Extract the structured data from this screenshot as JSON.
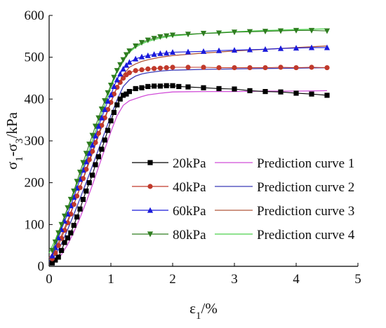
{
  "chart_data": {
    "type": "line",
    "xlabel": "ε1/%",
    "ylabel": "σ1-σ3/kPa",
    "xlim": [
      0,
      5
    ],
    "ylim": [
      0,
      600
    ],
    "x_ticks": [
      "0",
      "1",
      "2",
      "3",
      "4",
      "5"
    ],
    "y_ticks": [
      "0",
      "100",
      "200",
      "300",
      "400",
      "500",
      "600"
    ],
    "grid": false,
    "legend_position": "bottom-right",
    "series": [
      {
        "name": "20kPa",
        "kind": "measured",
        "marker": "square",
        "color": "#000000",
        "x": [
          0.05,
          0.1,
          0.15,
          0.2,
          0.25,
          0.3,
          0.35,
          0.4,
          0.45,
          0.5,
          0.55,
          0.6,
          0.65,
          0.7,
          0.75,
          0.8,
          0.85,
          0.9,
          0.95,
          1.0,
          1.05,
          1.1,
          1.15,
          1.2,
          1.25,
          1.3,
          1.4,
          1.5,
          1.6,
          1.7,
          1.8,
          1.9,
          2.0,
          2.1,
          2.25,
          2.5,
          2.75,
          3.0,
          3.25,
          3.5,
          3.75,
          4.0,
          4.25,
          4.5
        ],
        "y": [
          8,
          15,
          22,
          38,
          57,
          68,
          80,
          98,
          118,
          137,
          160,
          180,
          200,
          218,
          243,
          262,
          280,
          302,
          325,
          348,
          368,
          386,
          400,
          409,
          412,
          418,
          425,
          427,
          430,
          431,
          431,
          432,
          432,
          430,
          429,
          427,
          425,
          424,
          420,
          418,
          417,
          414,
          412,
          409
        ]
      },
      {
        "name": "40kPa",
        "kind": "measured",
        "marker": "circle",
        "color": "#c0392b",
        "x": [
          0.05,
          0.1,
          0.15,
          0.2,
          0.25,
          0.3,
          0.35,
          0.4,
          0.45,
          0.5,
          0.55,
          0.6,
          0.65,
          0.7,
          0.75,
          0.8,
          0.85,
          0.9,
          0.95,
          1.0,
          1.05,
          1.1,
          1.15,
          1.2,
          1.25,
          1.3,
          1.4,
          1.5,
          1.6,
          1.7,
          1.8,
          1.9,
          2.0,
          2.25,
          2.5,
          2.75,
          3.0,
          3.25,
          3.5,
          3.75,
          4.0,
          4.25,
          4.5
        ],
        "y": [
          18,
          32,
          50,
          67,
          86,
          104,
          125,
          148,
          168,
          188,
          210,
          232,
          255,
          275,
          296,
          318,
          337,
          355,
          375,
          392,
          412,
          428,
          440,
          450,
          458,
          463,
          468,
          470,
          472,
          473,
          474,
          475,
          476,
          476,
          476,
          475,
          475,
          475,
          475,
          476,
          475,
          476,
          475
        ]
      },
      {
        "name": "60kPa",
        "kind": "measured",
        "marker": "triangle-up",
        "color": "#1a1adb",
        "x": [
          0.05,
          0.1,
          0.15,
          0.2,
          0.25,
          0.3,
          0.35,
          0.4,
          0.45,
          0.5,
          0.55,
          0.6,
          0.65,
          0.7,
          0.75,
          0.8,
          0.85,
          0.9,
          0.95,
          1.0,
          1.05,
          1.1,
          1.15,
          1.2,
          1.25,
          1.3,
          1.4,
          1.5,
          1.6,
          1.7,
          1.8,
          1.9,
          2.0,
          2.25,
          2.5,
          2.75,
          3.0,
          3.25,
          3.5,
          3.75,
          4.0,
          4.25,
          4.5
        ],
        "y": [
          25,
          45,
          68,
          88,
          108,
          125,
          145,
          165,
          187,
          208,
          230,
          250,
          270,
          290,
          312,
          335,
          355,
          375,
          395,
          410,
          430,
          446,
          460,
          472,
          481,
          488,
          496,
          501,
          504,
          507,
          509,
          510,
          512,
          513,
          514,
          516,
          517,
          518,
          519,
          521,
          522,
          523,
          523
        ]
      },
      {
        "name": "80kPa",
        "kind": "measured",
        "marker": "triangle-down",
        "color": "#2e7d1f",
        "x": [
          0.05,
          0.1,
          0.15,
          0.2,
          0.25,
          0.3,
          0.35,
          0.4,
          0.45,
          0.5,
          0.55,
          0.6,
          0.65,
          0.7,
          0.75,
          0.8,
          0.85,
          0.9,
          0.95,
          1.0,
          1.05,
          1.1,
          1.15,
          1.2,
          1.25,
          1.3,
          1.4,
          1.5,
          1.6,
          1.7,
          1.8,
          1.9,
          2.0,
          2.25,
          2.5,
          2.75,
          3.0,
          3.25,
          3.5,
          3.75,
          4.0,
          4.25,
          4.5
        ],
        "y": [
          38,
          58,
          80,
          100,
          120,
          140,
          160,
          180,
          203,
          225,
          248,
          270,
          292,
          313,
          335,
          355,
          376,
          396,
          415,
          433,
          452,
          468,
          482,
          494,
          506,
          515,
          527,
          535,
          541,
          545,
          549,
          551,
          553,
          555,
          557,
          558,
          560,
          561,
          562,
          563,
          564,
          564,
          563
        ]
      },
      {
        "name": "Prediction curve 1",
        "kind": "prediction",
        "color": "#d14ed8",
        "x": [
          0,
          0.1,
          0.2,
          0.3,
          0.4,
          0.5,
          0.6,
          0.7,
          0.8,
          0.9,
          1.0,
          1.1,
          1.2,
          1.3,
          1.4,
          1.5,
          1.6,
          1.8,
          2.0,
          2.5,
          3.0,
          3.5,
          4.0,
          4.5
        ],
        "y": [
          5,
          12,
          28,
          52,
          82,
          116,
          154,
          194,
          237,
          280,
          322,
          360,
          385,
          396,
          401,
          406,
          410,
          414,
          417,
          418,
          418,
          419,
          419,
          420
        ]
      },
      {
        "name": "Prediction curve 2",
        "kind": "prediction",
        "color": "#3a3ab8",
        "x": [
          0,
          0.1,
          0.2,
          0.3,
          0.4,
          0.5,
          0.6,
          0.7,
          0.8,
          0.9,
          1.0,
          1.1,
          1.2,
          1.3,
          1.4,
          1.5,
          1.6,
          1.8,
          2.0,
          2.5,
          3.0,
          3.5,
          4.0,
          4.5
        ],
        "y": [
          12,
          26,
          54,
          88,
          124,
          162,
          200,
          240,
          280,
          320,
          360,
          398,
          430,
          446,
          455,
          460,
          463,
          467,
          469,
          471,
          472,
          473,
          474,
          475
        ]
      },
      {
        "name": "Prediction curve 3",
        "kind": "prediction",
        "color": "#b0583a",
        "x": [
          0,
          0.1,
          0.2,
          0.3,
          0.4,
          0.5,
          0.6,
          0.7,
          0.8,
          0.9,
          1.0,
          1.1,
          1.2,
          1.3,
          1.4,
          1.5,
          1.6,
          1.8,
          2.0,
          2.5,
          3.0,
          3.5,
          4.0,
          4.5
        ],
        "y": [
          20,
          40,
          74,
          110,
          148,
          188,
          228,
          270,
          312,
          352,
          392,
          428,
          458,
          476,
          484,
          490,
          494,
          500,
          504,
          510,
          515,
          519,
          523,
          527
        ]
      },
      {
        "name": "Prediction curve 4",
        "kind": "prediction",
        "color": "#4cd04c",
        "x": [
          0,
          0.1,
          0.2,
          0.3,
          0.4,
          0.5,
          0.6,
          0.7,
          0.8,
          0.9,
          1.0,
          1.1,
          1.2,
          1.3,
          1.4,
          1.5,
          1.6,
          1.8,
          2.0,
          2.5,
          3.0,
          3.5,
          4.0,
          4.5
        ],
        "y": [
          32,
          64,
          100,
          138,
          176,
          216,
          258,
          300,
          344,
          386,
          428,
          466,
          494,
          512,
          524,
          532,
          538,
          546,
          551,
          557,
          561,
          564,
          566,
          568
        ]
      }
    ]
  }
}
